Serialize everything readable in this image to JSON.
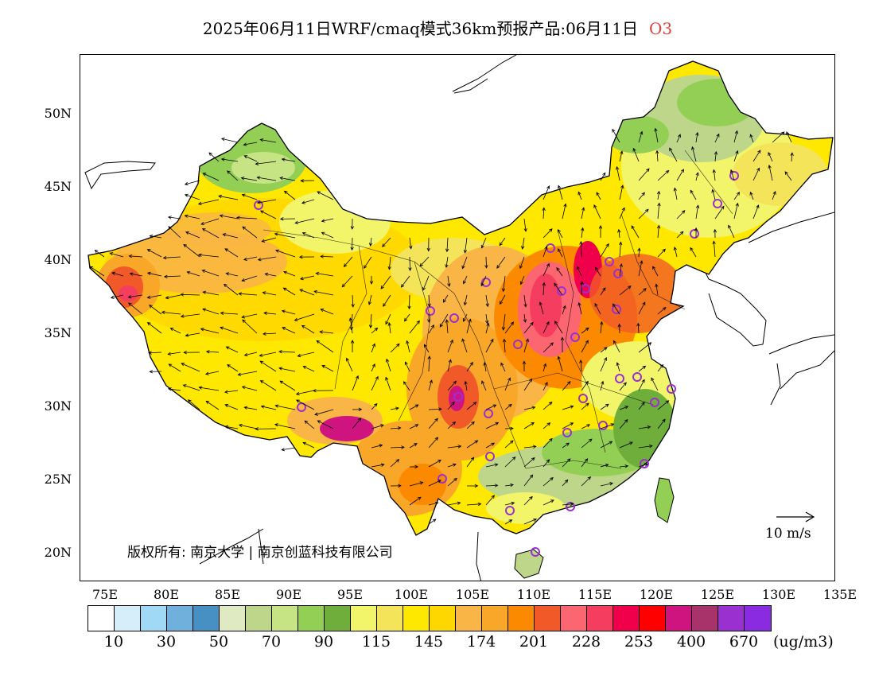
{
  "title": {
    "main": "2025年06月11日WRF/cmaq模式36km预报产品:06月11日",
    "species": "O3",
    "species_color": "#e0403a"
  },
  "map": {
    "lat_labels": [
      "50N",
      "45N",
      "40N",
      "35N",
      "30N",
      "25N",
      "20N"
    ],
    "lon_labels": [
      "75E",
      "80E",
      "85E",
      "90E",
      "95E",
      "100E",
      "105E",
      "110E",
      "115E",
      "120E",
      "125E",
      "130E",
      "135E"
    ],
    "copyright": "版权所有: 南京大学 | 南京创蓝科技有限公司",
    "wind_scale_label": "10 m/s",
    "ocean_color": "#ffffff",
    "border_color": "#000000"
  },
  "legend": {
    "colors": [
      "#ffffff",
      "#d5eefa",
      "#a0d9f5",
      "#6fb0dc",
      "#4690c4",
      "#dfeac2",
      "#bdd68a",
      "#c7e484",
      "#93cf55",
      "#6fae3a",
      "#f2f56a",
      "#f4e45a",
      "#ffe800",
      "#ffd700",
      "#f9b545",
      "#f9a728",
      "#fb8a00",
      "#f15a28",
      "#fc6670",
      "#f53d5f",
      "#f0004a",
      "#ff0000",
      "#cf1480",
      "#a8336a",
      "#9b30d0",
      "#8a2be2"
    ],
    "labels": [
      "10",
      "30",
      "50",
      "70",
      "90",
      "115",
      "145",
      "174",
      "201",
      "228",
      "253",
      "400",
      "670"
    ],
    "units": "(ug/m3)"
  }
}
